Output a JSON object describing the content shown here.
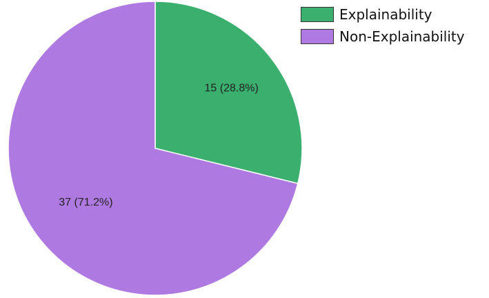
{
  "chart_data": {
    "type": "pie",
    "title": "",
    "categories": [
      "Explainability",
      "Non-Explainability"
    ],
    "values": [
      15,
      37
    ],
    "percentages": [
      28.8,
      71.2
    ],
    "slice_labels": [
      "15 (28.8%)",
      "37 (71.2%)"
    ],
    "colors": [
      "#3aaf6e",
      "#ae79e0"
    ],
    "start_angle": "12 o'clock",
    "direction": "clockwise",
    "legend_position": "top-right",
    "legend": [
      {
        "label": "Explainability",
        "color": "#3aaf6e"
      },
      {
        "label": "Non-Explainability",
        "color": "#ae79e0"
      }
    ]
  }
}
